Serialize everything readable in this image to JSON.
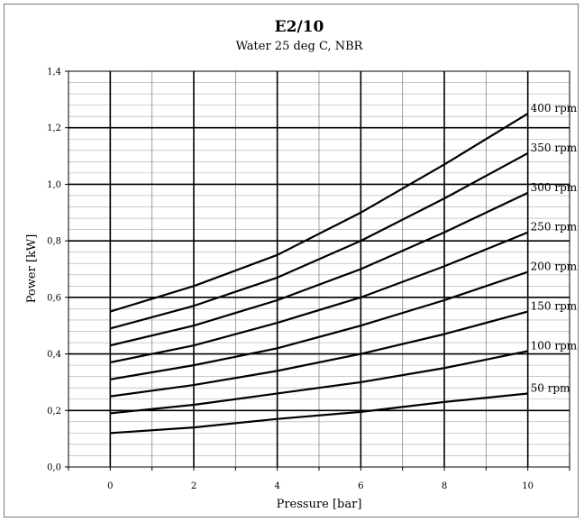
{
  "chart_data": {
    "type": "line",
    "title": "E2/10",
    "subtitle": "Water 25 deg C, NBR",
    "xlabel": "Pressure [bar]",
    "ylabel": "Power [kW]",
    "xlim": [
      -1,
      11
    ],
    "ylim": [
      0,
      1.4
    ],
    "x_ticks": [
      "0",
      "2",
      "4",
      "6",
      "8",
      "10"
    ],
    "y_ticks": [
      "0,0",
      "0,2",
      "0,4",
      "0,6",
      "0,8",
      "1,0",
      "1,2",
      "1,4"
    ],
    "grid": true,
    "x": [
      0,
      2,
      4,
      6,
      8,
      10
    ],
    "series": [
      {
        "name": "50 rpm",
        "values": [
          0.12,
          0.14,
          0.17,
          0.195,
          0.23,
          0.26
        ]
      },
      {
        "name": "100 rpm",
        "values": [
          0.19,
          0.22,
          0.26,
          0.3,
          0.35,
          0.41
        ]
      },
      {
        "name": "150 rpm",
        "values": [
          0.25,
          0.29,
          0.34,
          0.4,
          0.47,
          0.55
        ]
      },
      {
        "name": "200 rpm",
        "values": [
          0.31,
          0.36,
          0.42,
          0.5,
          0.59,
          0.69
        ]
      },
      {
        "name": "250 rpm",
        "values": [
          0.37,
          0.43,
          0.51,
          0.6,
          0.71,
          0.83
        ]
      },
      {
        "name": "300 rpm",
        "values": [
          0.43,
          0.5,
          0.59,
          0.7,
          0.83,
          0.97
        ]
      },
      {
        "name": "350 rpm",
        "values": [
          0.49,
          0.57,
          0.67,
          0.8,
          0.95,
          1.11
        ]
      },
      {
        "name": "400 rpm",
        "values": [
          0.55,
          0.64,
          0.75,
          0.9,
          1.07,
          1.25
        ]
      }
    ]
  }
}
